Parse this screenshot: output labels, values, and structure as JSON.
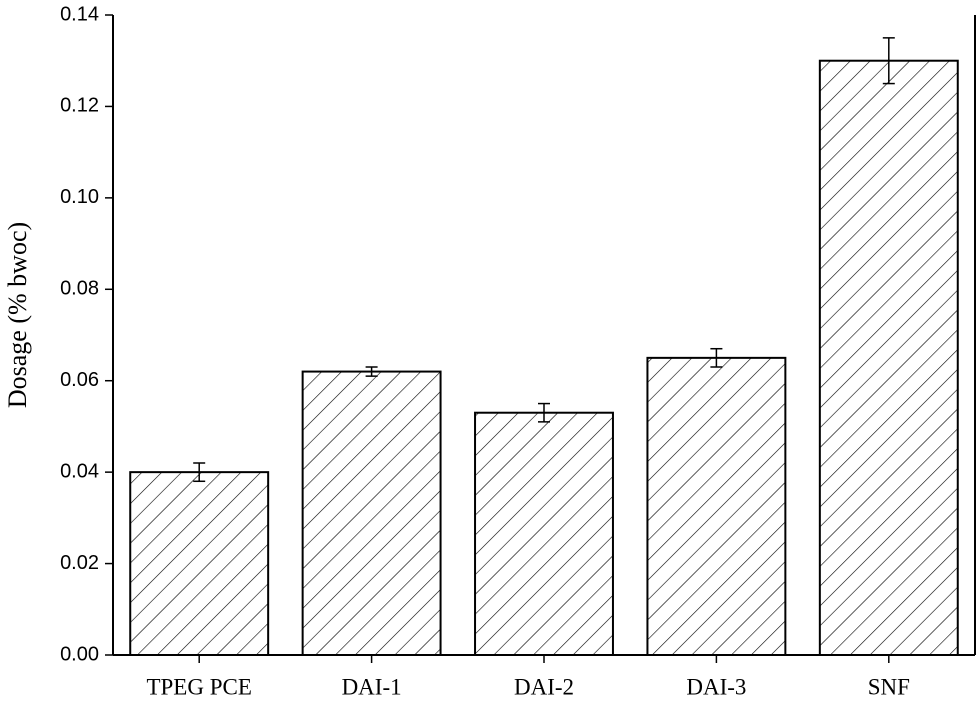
{
  "chart_data": {
    "type": "bar",
    "y_label": "Dosage (% bwoc)",
    "categories": [
      "TPEG PCE",
      "DAI-1",
      "DAI-2",
      "DAI-3",
      "SNF"
    ],
    "values": [
      0.04,
      0.062,
      0.053,
      0.065,
      0.13
    ],
    "errors": [
      0.002,
      0.001,
      0.002,
      0.002,
      0.005
    ],
    "color": "#000000",
    "ylim": [
      0,
      0.14
    ],
    "yticks": [
      {
        "value": 0,
        "label": "0.00"
      },
      {
        "value": 0.02,
        "label": "0.02"
      },
      {
        "value": 0.04,
        "label": "0.04"
      },
      {
        "value": 0.06,
        "label": "0.06"
      },
      {
        "value": 0.08,
        "label": "0.08"
      },
      {
        "value": 0.1,
        "label": "0.10"
      },
      {
        "value": 0.12,
        "label": "0.12"
      },
      {
        "value": 0.14,
        "label": "0.14"
      }
    ],
    "grid": false
  }
}
